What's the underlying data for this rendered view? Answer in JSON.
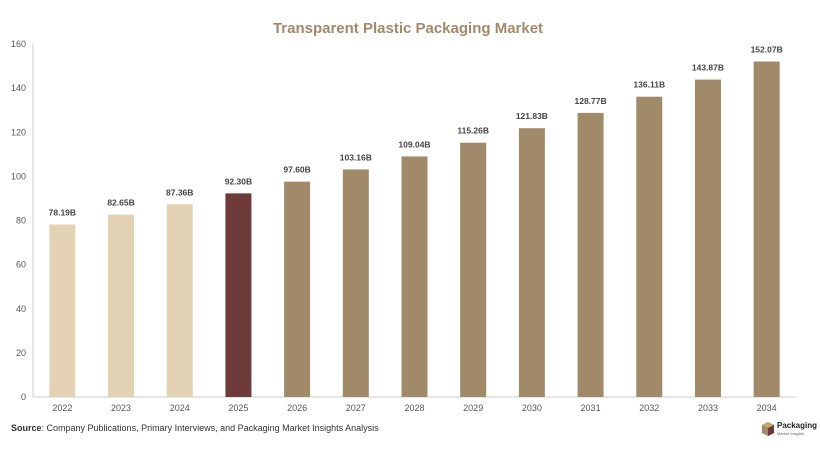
{
  "chart_data": {
    "type": "bar",
    "title": "Transparent Plastic Packaging Market",
    "xlabel": "",
    "ylabel": "",
    "ylim": [
      0,
      160
    ],
    "yticks": [
      0,
      20,
      40,
      60,
      80,
      100,
      120,
      140,
      160
    ],
    "grid": false,
    "legend": "none",
    "categories": [
      "2022",
      "2023",
      "2024",
      "2025",
      "2026",
      "2027",
      "2028",
      "2029",
      "2030",
      "2031",
      "2032",
      "2033",
      "2034"
    ],
    "values": [
      78.19,
      82.65,
      87.36,
      92.3,
      97.6,
      103.16,
      109.04,
      115.26,
      121.83,
      128.77,
      136.11,
      143.87,
      152.07
    ],
    "data_labels": [
      "78.19B",
      "82.65B",
      "87.36B",
      "92.30B",
      "97.60B",
      "103.16B",
      "109.04B",
      "115.26B",
      "121.83B",
      "128.77B",
      "136.11B",
      "143.87B",
      "152.07B"
    ],
    "bar_colors": [
      "#e3d2b3",
      "#e3d2b3",
      "#e3d2b3",
      "#6e3a3a",
      "#a08a6a",
      "#a08a6a",
      "#a08a6a",
      "#a08a6a",
      "#a08a6a",
      "#a08a6a",
      "#a08a6a",
      "#a08a6a",
      "#a08a6a"
    ]
  },
  "footer": {
    "source_label": "Source",
    "source_text": ": Company Publications, Primary Interviews, and Packaging Market Insights Analysis"
  },
  "logo": {
    "name": "Packaging",
    "sub": "Market Insights",
    "icon": "box-icon"
  }
}
